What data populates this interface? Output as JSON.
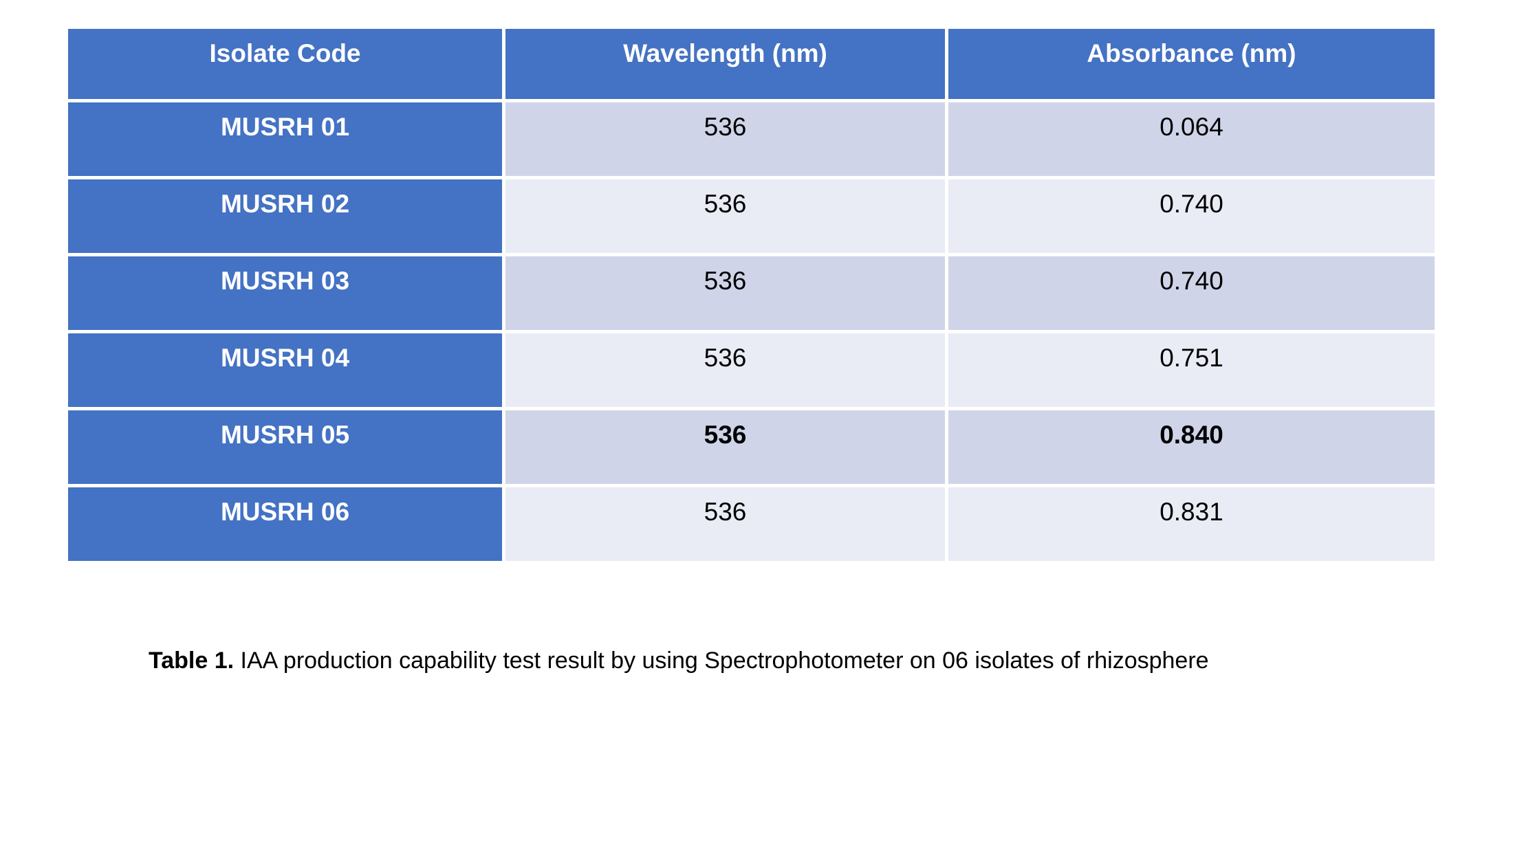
{
  "table": {
    "headers": {
      "isolate_code": "Isolate Code",
      "wavelength": "Wavelength (nm)",
      "absorbance": "Absorbance (nm)"
    },
    "rows": [
      {
        "code": "MUSRH 01",
        "wavelength": "536",
        "absorbance": "0.064"
      },
      {
        "code": "MUSRH 02",
        "wavelength": "536",
        "absorbance": "0.740"
      },
      {
        "code": "MUSRH 03",
        "wavelength": "536",
        "absorbance": "0.740"
      },
      {
        "code": "MUSRH 04",
        "wavelength": "536",
        "absorbance": "0.751"
      },
      {
        "code": "MUSRH 05",
        "wavelength": "536",
        "absorbance": "0.840"
      },
      {
        "code": "MUSRH 06",
        "wavelength": "536",
        "absorbance": "0.831"
      }
    ]
  },
  "caption": {
    "label": "Table 1.",
    "text": " IAA production capability test result by using Spectrophotometer on 06 isolates of rhizosphere"
  },
  "colors": {
    "header_blue": "#4472C4",
    "band_dark": "#CFD4E8",
    "band_light": "#E9EBF5"
  },
  "chart_data": {
    "type": "table",
    "title": "Table 1. IAA production capability test result by using Spectrophotometer on 06 isolates of rhizosphere",
    "columns": [
      "Isolate Code",
      "Wavelength (nm)",
      "Absorbance (nm)"
    ],
    "rows": [
      [
        "MUSRH 01",
        536,
        0.064
      ],
      [
        "MUSRH 02",
        536,
        0.74
      ],
      [
        "MUSRH 03",
        536,
        0.74
      ],
      [
        "MUSRH 04",
        536,
        0.751
      ],
      [
        "MUSRH 05",
        536,
        0.84
      ],
      [
        "MUSRH 06",
        536,
        0.831
      ]
    ]
  }
}
